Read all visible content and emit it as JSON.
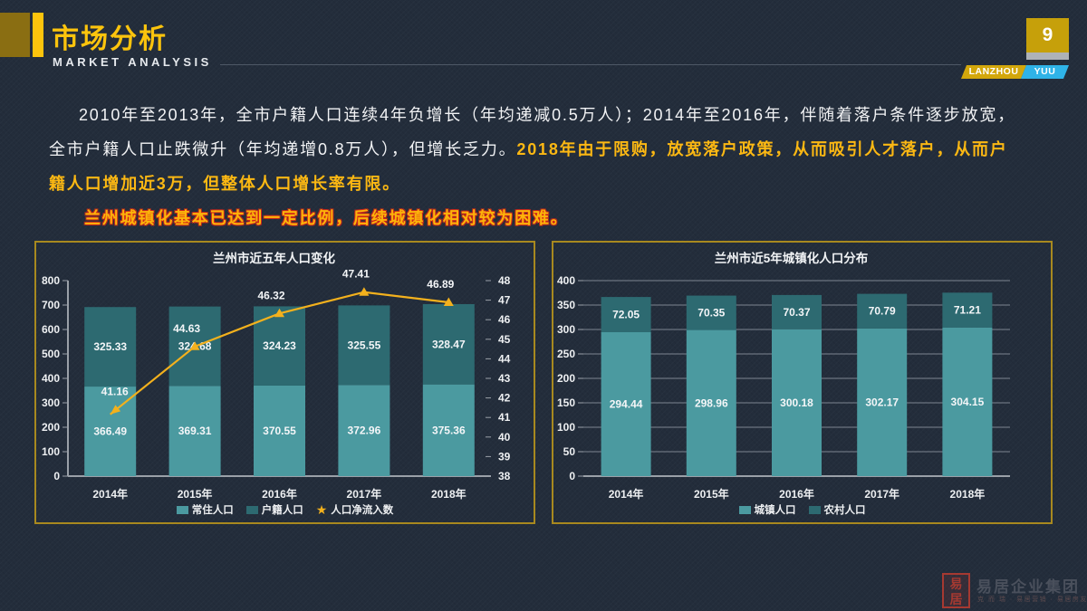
{
  "page": {
    "number": "9"
  },
  "header": {
    "title": "市场分析",
    "subtitle": "MARKET ANALYSIS",
    "badge_left": "LANZHOU",
    "badge_right": "YUU"
  },
  "intro": {
    "line1": "2010年至2013年，全市户籍人口连续4年负增长（年均递减0.5万人）；2014年至2016年，伴随着落户条件逐步放宽，",
    "line2_white": "全市户籍人口止跌微升（年均递增0.8万人），但增长乏力。",
    "line2_gold": "2018年由于限购，放宽落户政策，从而吸引人才落户，从而户",
    "line3_gold": "籍人口增加近3万，但整体人口增长率有限。",
    "line4_red": "兰州城镇化基本已达到一定比例，后续城镇化相对较为困难。"
  },
  "chart_data": [
    {
      "type": "stacked-bar-line",
      "title": "兰州市近五年人口变化",
      "categories": [
        "2014年",
        "2015年",
        "2016年",
        "2017年",
        "2018年"
      ],
      "series": [
        {
          "name": "常住人口",
          "values": [
            366.49,
            369.31,
            370.55,
            372.96,
            375.36
          ],
          "color": "#4b9aa0"
        },
        {
          "name": "户籍人口",
          "values": [
            325.33,
            324.68,
            324.23,
            325.55,
            328.47
          ],
          "color": "#2d6a71"
        }
      ],
      "line_series": {
        "name": "人口净流入数",
        "values": [
          41.16,
          44.63,
          46.32,
          47.41,
          46.89
        ],
        "color": "#f3b11d"
      },
      "y_left": {
        "min": 0,
        "max": 800,
        "step": 100
      },
      "y_right": {
        "min": 38,
        "max": 48,
        "step": 1
      },
      "grid": false,
      "legend_position": "bottom"
    },
    {
      "type": "stacked-bar",
      "title": "兰州市近5年城镇化人口分布",
      "categories": [
        "2014年",
        "2015年",
        "2016年",
        "2017年",
        "2018年"
      ],
      "series": [
        {
          "name": "城镇人口",
          "values": [
            294.44,
            298.96,
            300.18,
            302.17,
            304.15
          ],
          "color": "#4b9aa0"
        },
        {
          "name": "农村人口",
          "values": [
            72.05,
            70.35,
            70.37,
            70.79,
            71.21
          ],
          "color": "#2d6a71"
        }
      ],
      "y_left": {
        "min": 0,
        "max": 400,
        "step": 50
      },
      "grid": true,
      "legend_position": "bottom"
    }
  ],
  "footer": {
    "company": "易居企业集团",
    "tagline": "克 而 瑞 · 易居营销 · 易居房友"
  },
  "colors": {
    "background": "#232d3b",
    "accent_gold": "#fcc40d",
    "panel_border": "#a8891f",
    "bar_light_teal": "#4b9aa0",
    "bar_dark_teal": "#2d6a71",
    "line_gold": "#f3b11d",
    "badge_cyan": "#2fb3e8",
    "highlight_red": "#d8261a"
  }
}
